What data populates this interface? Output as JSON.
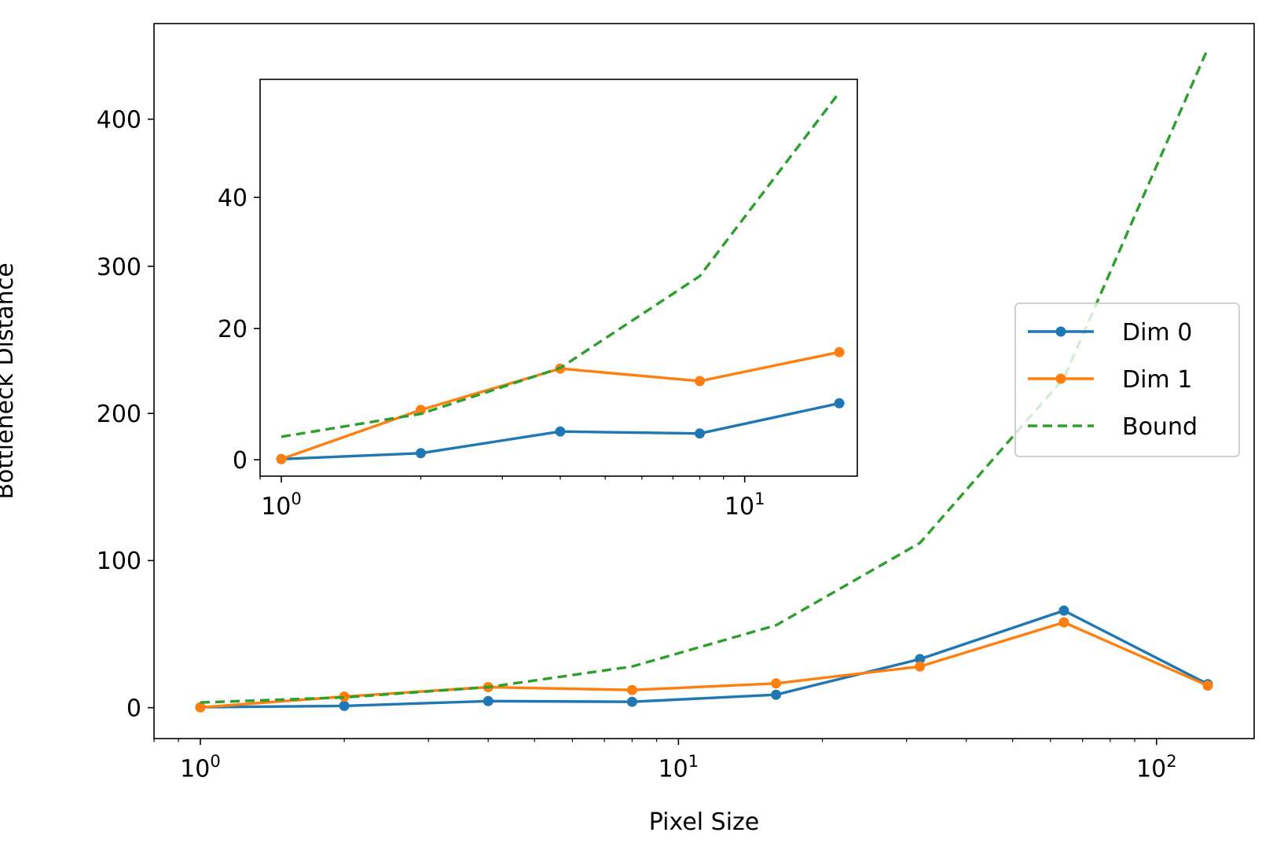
{
  "chart_data": [
    {
      "id": "main",
      "type": "line",
      "xscale": "log",
      "xlabel": "Pixel Size",
      "ylabel": "Bottleneck Distance",
      "xlim": [
        0.8,
        160
      ],
      "ylim": [
        -21,
        465
      ],
      "xticks": [
        {
          "value": 1,
          "label": "10",
          "exp": "0"
        },
        {
          "value": 10,
          "label": "10",
          "exp": "1"
        },
        {
          "value": 100,
          "label": "10",
          "exp": "2"
        }
      ],
      "yticks": [
        0,
        100,
        200,
        300,
        400
      ],
      "legend": {
        "position": "right",
        "entries": [
          "Dim 0",
          "Dim 1",
          "Bound"
        ]
      },
      "series": [
        {
          "name": "Dim 0",
          "color": "#1f77b4",
          "style": "solid",
          "markers": true,
          "x": [
            1,
            2,
            4,
            8,
            16,
            32,
            64,
            128
          ],
          "y": [
            0.3,
            1.2,
            4.5,
            4.0,
            8.8,
            33,
            66,
            16
          ]
        },
        {
          "name": "Dim 1",
          "color": "#ff7f0e",
          "style": "solid",
          "markers": true,
          "x": [
            1,
            2,
            4,
            8,
            16,
            32,
            64,
            128
          ],
          "y": [
            0.2,
            7.5,
            14,
            12,
            16.5,
            28,
            58,
            15
          ]
        },
        {
          "name": "Bound",
          "color": "#2ca02c",
          "style": "dashed",
          "markers": false,
          "x": [
            1,
            2,
            4,
            8,
            16,
            32,
            64,
            128
          ],
          "y": [
            3.5,
            7,
            14,
            28,
            56,
            112,
            224,
            448
          ]
        }
      ]
    },
    {
      "id": "inset",
      "type": "line",
      "xscale": "log",
      "xlim": [
        0.9,
        17.5
      ],
      "ylim": [
        -2.5,
        58
      ],
      "xticks": [
        {
          "value": 1,
          "label": "10",
          "exp": "0"
        },
        {
          "value": 10,
          "label": "10",
          "exp": "1"
        }
      ],
      "yticks": [
        0,
        20,
        40
      ],
      "series": [
        {
          "name": "Dim 0",
          "color": "#1f77b4",
          "style": "solid",
          "markers": true,
          "x": [
            1,
            2,
            4,
            8,
            16
          ],
          "y": [
            0.1,
            1.0,
            4.3,
            4.0,
            8.6
          ]
        },
        {
          "name": "Dim 1",
          "color": "#ff7f0e",
          "style": "solid",
          "markers": true,
          "x": [
            1,
            2,
            4,
            8,
            16
          ],
          "y": [
            0.1,
            7.6,
            13.9,
            12.0,
            16.4
          ]
        },
        {
          "name": "Bound",
          "color": "#2ca02c",
          "style": "dashed",
          "markers": false,
          "x": [
            1,
            2,
            4,
            8,
            16
          ],
          "y": [
            3.5,
            7,
            14,
            28,
            56
          ]
        }
      ]
    }
  ]
}
